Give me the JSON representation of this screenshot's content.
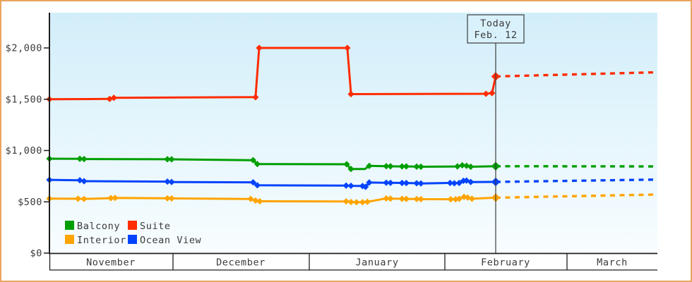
{
  "window": {
    "border_color": "#e9a55c",
    "background": "#ffffff"
  },
  "chart_data": {
    "type": "line",
    "title": "",
    "description": "Cruise cabin price history by category with dotted forecast after today",
    "today": {
      "t": 0.734,
      "title": "Today",
      "date": "Feb. 12"
    },
    "y_axis": {
      "ticks": [
        {
          "label": "$0",
          "value": 0
        },
        {
          "label": "$500",
          "value": 500
        },
        {
          "label": "$1,000",
          "value": 1000
        },
        {
          "label": "$1,500",
          "value": 1500
        },
        {
          "label": "$2,000",
          "value": 2000
        }
      ],
      "ylim": [
        0,
        2345
      ],
      "grid": false
    },
    "x_axis": {
      "months": [
        {
          "label": "November",
          "start": 0.0,
          "end": 0.2033
        },
        {
          "label": "December",
          "start": 0.2033,
          "end": 0.4274
        },
        {
          "label": "January",
          "start": 0.4274,
          "end": 0.6504
        },
        {
          "label": "February",
          "start": 0.6504,
          "end": 0.8514
        },
        {
          "label": "March",
          "start": 0.8514,
          "end": 1.0
        }
      ]
    },
    "legend": {
      "position": "bottom-left-inside",
      "items": [
        {
          "label": "Balcony",
          "color": "#009e00"
        },
        {
          "label": "Suite",
          "color": "#ff2c00"
        },
        {
          "label": "Interior",
          "color": "#ffa400"
        },
        {
          "label": "Ocean View",
          "color": "#0343fc"
        }
      ]
    },
    "series": [
      {
        "id": "suite",
        "name": "Suite",
        "color": "#ff2c00",
        "points": [
          [
            0,
            1500
          ],
          [
            0.099,
            1503
          ],
          [
            0.106,
            1514
          ],
          [
            0.339,
            1520
          ],
          [
            0.345,
            2000
          ],
          [
            0.49,
            2000
          ],
          [
            0.496,
            1550
          ],
          [
            0.718,
            1553
          ],
          [
            0.728,
            1560
          ],
          [
            0.734,
            1722
          ]
        ],
        "forecast_end": [
          1,
          1763
        ]
      },
      {
        "id": "balcony",
        "name": "Balcony",
        "color": "#009e00",
        "points": [
          [
            0,
            920
          ],
          [
            0.05,
            919
          ],
          [
            0.057,
            917
          ],
          [
            0.194,
            915
          ],
          [
            0.201,
            914
          ],
          [
            0.335,
            906
          ],
          [
            0.342,
            868
          ],
          [
            0.489,
            866
          ],
          [
            0.496,
            820
          ],
          [
            0.519,
            820,
            0
          ],
          [
            0.526,
            850
          ],
          [
            0.554,
            847
          ],
          [
            0.561,
            846
          ],
          [
            0.58,
            845
          ],
          [
            0.587,
            845
          ],
          [
            0.604,
            843
          ],
          [
            0.611,
            842
          ],
          [
            0.671,
            845
          ],
          [
            0.679,
            856
          ],
          [
            0.686,
            851
          ],
          [
            0.693,
            842
          ],
          [
            0.734,
            847
          ]
        ],
        "forecast_end": [
          1,
          845
        ]
      },
      {
        "id": "ocean-view",
        "name": "Ocean View",
        "color": "#0343fc",
        "points": [
          [
            0,
            714
          ],
          [
            0.05,
            710
          ],
          [
            0.057,
            701
          ],
          [
            0.194,
            697
          ],
          [
            0.201,
            693
          ],
          [
            0.335,
            690
          ],
          [
            0.342,
            661
          ],
          [
            0.488,
            658
          ],
          [
            0.496,
            656
          ],
          [
            0.515,
            654
          ],
          [
            0.52,
            646
          ],
          [
            0.526,
            688
          ],
          [
            0.554,
            686
          ],
          [
            0.561,
            685
          ],
          [
            0.58,
            684
          ],
          [
            0.587,
            683
          ],
          [
            0.604,
            681
          ],
          [
            0.611,
            679
          ],
          [
            0.659,
            684
          ],
          [
            0.666,
            681
          ],
          [
            0.674,
            684
          ],
          [
            0.681,
            705
          ],
          [
            0.686,
            707
          ],
          [
            0.693,
            693
          ],
          [
            0.734,
            694
          ]
        ],
        "forecast_end": [
          1,
          717
        ]
      },
      {
        "id": "interior",
        "name": "Interior",
        "color": "#ffa400",
        "points": [
          [
            0,
            531
          ],
          [
            0.047,
            530
          ],
          [
            0.057,
            528
          ],
          [
            0.101,
            536
          ],
          [
            0.108,
            538
          ],
          [
            0.194,
            534
          ],
          [
            0.201,
            533
          ],
          [
            0.331,
            528
          ],
          [
            0.339,
            512
          ],
          [
            0.346,
            505
          ],
          [
            0.488,
            504
          ],
          [
            0.496,
            498
          ],
          [
            0.505,
            496
          ],
          [
            0.515,
            496
          ],
          [
            0.523,
            500
          ],
          [
            0.554,
            533
          ],
          [
            0.561,
            531
          ],
          [
            0.58,
            529
          ],
          [
            0.587,
            528
          ],
          [
            0.604,
            527
          ],
          [
            0.611,
            526
          ],
          [
            0.66,
            525
          ],
          [
            0.668,
            525
          ],
          [
            0.674,
            529
          ],
          [
            0.682,
            548
          ],
          [
            0.688,
            541
          ],
          [
            0.695,
            530
          ],
          [
            0.734,
            540
          ]
        ],
        "forecast_end": [
          1,
          571
        ]
      }
    ],
    "colors": {
      "plot_bg_top": "#d2eefa",
      "plot_bg_bottom": "#f8fdff",
      "axis": "#1f1f1f",
      "today_line": "#3c3c3c",
      "today_box_fill": "#d9f1fb"
    }
  }
}
